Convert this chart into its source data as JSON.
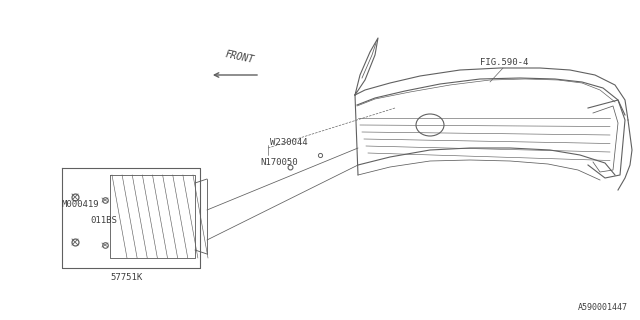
{
  "bg_color": "#ffffff",
  "line_color": "#606060",
  "text_color": "#404040",
  "fig_label": "FIG.590-4",
  "footnote": "A590001447",
  "arrow_front_text": "FRONT",
  "label_fontsize": 6.5,
  "footnote_fontsize": 6.0
}
